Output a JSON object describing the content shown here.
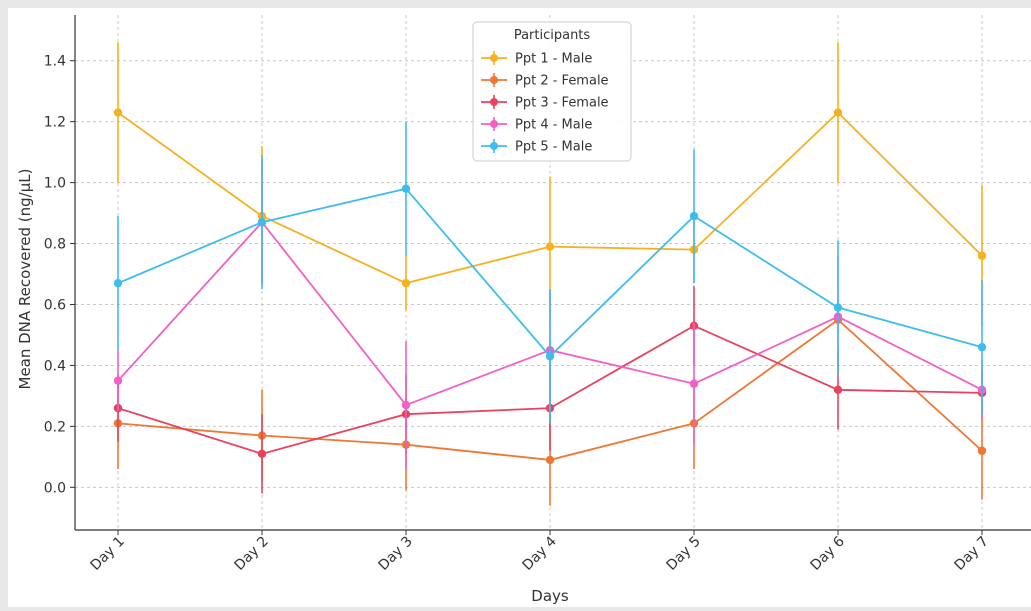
{
  "chart_data": {
    "type": "line",
    "title": "",
    "xlabel": "Days",
    "ylabel": "Mean DNA Recovered (ng/µL)",
    "categories": [
      "Day 1",
      "Day 2",
      "Day 3",
      "Day 4",
      "Day 5",
      "Day 6",
      "Day 7"
    ],
    "ylim": [
      -0.14,
      1.55
    ],
    "yticks": [
      "0.0",
      "0.2",
      "0.4",
      "0.6",
      "0.8",
      "1.0",
      "1.2",
      "1.4"
    ],
    "grid": true,
    "legend": {
      "title": "Participants",
      "placement": "top-center"
    },
    "series": [
      {
        "name": "Ppt 1 - Male",
        "color": "#F5B120",
        "values": [
          1.23,
          0.89,
          0.67,
          0.79,
          0.78,
          1.23,
          0.76
        ],
        "errors": [
          0.23,
          0.23,
          0.09,
          0.23,
          0.11,
          0.23,
          0.23
        ]
      },
      {
        "name": "Ppt 2 - Female",
        "color": "#EE7733",
        "values": [
          0.21,
          0.17,
          0.14,
          0.09,
          0.21,
          0.55,
          0.12
        ],
        "errors": [
          0.15,
          0.15,
          0.15,
          0.15,
          0.15,
          0.02,
          0.16
        ]
      },
      {
        "name": "Ppt 3 - Female",
        "color": "#E8425F",
        "values": [
          0.26,
          0.11,
          0.24,
          0.26,
          0.53,
          0.32,
          0.31
        ],
        "errors": [
          0.11,
          0.13,
          0.13,
          0.14,
          0.13,
          0.13,
          0.07
        ]
      },
      {
        "name": "Ppt 4 - Male",
        "color": "#F060C8",
        "values": [
          0.35,
          0.87,
          0.27,
          0.45,
          0.34,
          0.56,
          0.32
        ],
        "errors": [
          0.1,
          0.2,
          0.21,
          0.2,
          0.2,
          0.2,
          0.1
        ]
      },
      {
        "name": "Ppt 5 - Male",
        "color": "#3DBDED",
        "values": [
          0.67,
          0.87,
          0.98,
          0.43,
          0.89,
          0.59,
          0.46
        ],
        "errors": [
          0.22,
          0.22,
          0.22,
          0.22,
          0.22,
          0.22,
          0.22
        ]
      }
    ]
  }
}
